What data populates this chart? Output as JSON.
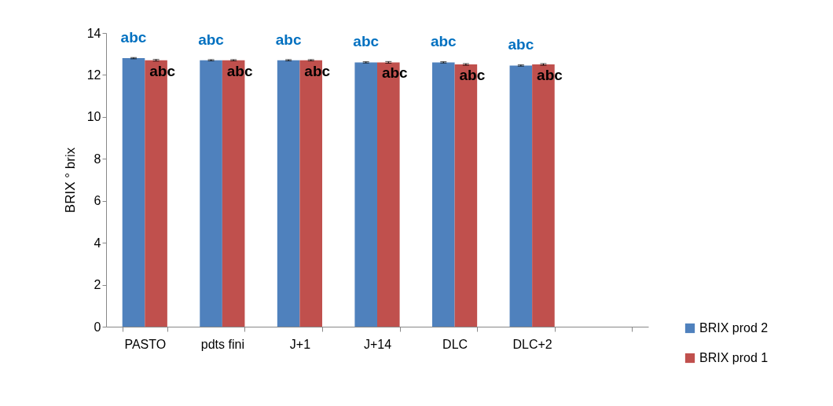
{
  "chart_data": {
    "type": "bar",
    "ylabel": "BRIX ° brix",
    "categories": [
      "PASTO",
      "pdts fini",
      "J+1",
      "J+14",
      "DLC",
      "DLC+2",
      null
    ],
    "series": [
      {
        "name": "BRIX prod 2",
        "color": "#4f81bd",
        "values": [
          12.8,
          12.7,
          12.7,
          12.6,
          12.6,
          12.45,
          null
        ],
        "errors": [
          0.03,
          0.03,
          0.03,
          0.03,
          0.03,
          0.03,
          null
        ]
      },
      {
        "name": "BRIX prod 1",
        "color": "#c0504d",
        "values": [
          12.7,
          12.7,
          12.7,
          12.6,
          12.5,
          12.5,
          null
        ],
        "errors": [
          0.04,
          0.03,
          0.03,
          0.04,
          0.04,
          0.04,
          null
        ]
      }
    ],
    "ylim": [
      0,
      14
    ],
    "yticks": [
      0,
      2,
      4,
      6,
      8,
      10,
      12,
      14
    ],
    "grid": false,
    "legend": "right",
    "annotations": [
      "abc",
      "abc",
      "abc",
      "abc",
      "abc",
      "abc",
      "abc",
      "abc",
      "abc",
      "abc",
      "abc",
      "abc"
    ]
  }
}
